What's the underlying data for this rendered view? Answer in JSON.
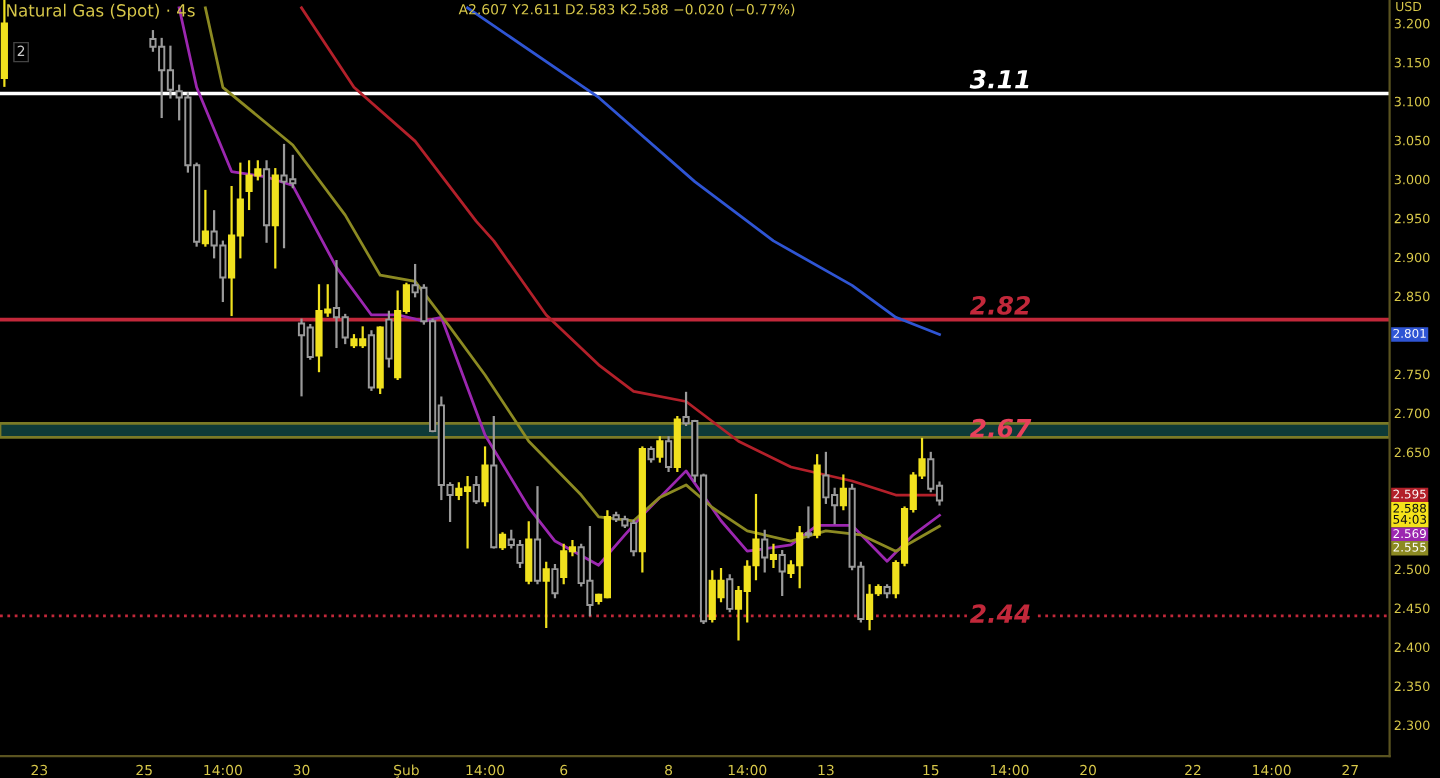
{
  "chart_data": {
    "type": "candlestick",
    "title": "Natural Gas (Spot) · 4s",
    "ylabel": "USD",
    "annotations": [
      "A2.607 Y2.611 D2.583 K2.588 −0.020 (−0.77%)",
      "2",
      "2.801",
      "2.595",
      "2.569",
      "2.555",
      "2.588\n54:03"
    ],
    "categories": [
      null,
      null,
      null,
      null,
      "23",
      null,
      null,
      null,
      null,
      null,
      null,
      null,
      null,
      null,
      null,
      null,
      "25",
      null,
      null,
      null,
      null,
      null,
      null,
      null,
      null,
      "14:00",
      null,
      null,
      null,
      null,
      null,
      null,
      null,
      null,
      "30",
      null,
      null,
      null,
      null,
      null,
      null,
      null,
      null,
      null,
      null,
      null,
      "Şub",
      null,
      null,
      null,
      null,
      null,
      null,
      null,
      null,
      "14:00",
      null,
      null,
      null,
      null,
      null,
      null,
      null,
      null,
      "6",
      null,
      null,
      null,
      null,
      null,
      null,
      null,
      null,
      null,
      null,
      null,
      "8",
      null,
      null,
      null,
      null,
      null,
      null,
      null,
      null,
      "14:00",
      null,
      null,
      null,
      null,
      null,
      null,
      null,
      null,
      "13",
      null,
      null,
      null,
      null,
      null,
      null,
      null,
      null,
      null,
      null,
      null,
      "15",
      null,
      null,
      null,
      null,
      null,
      null,
      null,
      null,
      "14:00",
      null,
      null,
      null,
      null,
      null,
      null,
      null,
      null,
      "20",
      null,
      null,
      null,
      null,
      null,
      null,
      null,
      null,
      null,
      null,
      null,
      "22",
      null,
      null,
      null,
      null,
      null,
      null,
      null,
      null,
      "14:00",
      null,
      null,
      null,
      null,
      null,
      null,
      null,
      null,
      "27",
      null,
      null,
      null,
      null
    ],
    "ohlc": [
      [
        3.13,
        3.23,
        3.12,
        3.2
      ],
      null,
      null,
      null,
      null,
      null,
      null,
      null,
      null,
      null,
      null,
      null,
      null,
      null,
      null,
      null,
      null,
      [
        3.18,
        3.19,
        3.165,
        3.17
      ],
      [
        3.17,
        3.18,
        3.08,
        3.14
      ],
      [
        3.14,
        3.17,
        3.105,
        3.115
      ],
      [
        3.113,
        3.12,
        3.077,
        3.105
      ],
      [
        3.105,
        3.11,
        3.01,
        3.018
      ],
      [
        3.018,
        3.02,
        2.915,
        2.92
      ],
      [
        2.918,
        2.985,
        2.915,
        2.933
      ],
      [
        2.933,
        2.959,
        2.9,
        2.915
      ],
      [
        2.915,
        2.92,
        2.844,
        2.874
      ],
      [
        2.874,
        2.99,
        2.826,
        2.928
      ],
      [
        2.928,
        3.02,
        2.9,
        2.974
      ],
      [
        2.985,
        3.023,
        2.962,
        3.005
      ],
      [
        3.005,
        3.023,
        3.0,
        3.013
      ],
      [
        3.013,
        3.023,
        2.92,
        2.941
      ],
      [
        2.941,
        3.013,
        2.887,
        3.005
      ],
      [
        3.005,
        3.044,
        2.913,
        2.997
      ],
      [
        3.0,
        3.03,
        2.99,
        2.995
      ],
      [
        2.815,
        2.82,
        2.723,
        2.8
      ],
      [
        2.81,
        2.813,
        2.77,
        2.772
      ],
      [
        2.774,
        2.864,
        2.754,
        2.831
      ],
      [
        2.829,
        2.864,
        2.825,
        2.833
      ],
      [
        2.835,
        2.895,
        2.785,
        2.823
      ],
      [
        2.823,
        2.826,
        2.79,
        2.797
      ],
      [
        2.787,
        2.8,
        2.785,
        2.795
      ],
      [
        2.787,
        2.81,
        2.785,
        2.795
      ],
      [
        2.8,
        2.805,
        2.73,
        2.733
      ],
      [
        2.733,
        2.81,
        2.726,
        2.81
      ],
      [
        2.82,
        2.83,
        2.76,
        2.77
      ],
      [
        2.746,
        2.856,
        2.744,
        2.831
      ],
      [
        2.831,
        2.866,
        2.829,
        2.864
      ],
      [
        2.864,
        2.89,
        2.85,
        2.855
      ],
      [
        2.861,
        2.864,
        2.815,
        2.818
      ],
      [
        2.818,
        2.82,
        2.677,
        2.677
      ],
      [
        2.71,
        2.72,
        2.59,
        2.608
      ],
      [
        2.608,
        2.61,
        2.562,
        2.595
      ],
      [
        2.595,
        2.61,
        2.59,
        2.603
      ],
      [
        2.6,
        2.618,
        2.528,
        2.605
      ],
      [
        2.608,
        2.618,
        2.585,
        2.587
      ],
      [
        2.587,
        2.656,
        2.582,
        2.633
      ],
      [
        2.633,
        2.695,
        2.528,
        2.528
      ],
      [
        2.528,
        2.546,
        2.526,
        2.544
      ],
      [
        2.538,
        2.549,
        2.528,
        2.531
      ],
      [
        2.531,
        2.536,
        2.503,
        2.508
      ],
      [
        2.485,
        2.56,
        2.482,
        2.538
      ],
      [
        2.538,
        2.605,
        2.482,
        2.485
      ],
      [
        2.485,
        2.508,
        2.426,
        2.5
      ],
      [
        2.5,
        2.505,
        2.464,
        2.469
      ],
      [
        2.49,
        2.531,
        2.482,
        2.523
      ],
      [
        2.523,
        2.536,
        2.518,
        2.528
      ],
      [
        2.528,
        2.531,
        2.479,
        2.482
      ],
      [
        2.485,
        2.554,
        2.441,
        2.454
      ],
      [
        2.459,
        2.467,
        2.456,
        2.467
      ],
      [
        2.464,
        2.574,
        2.464,
        2.567
      ],
      [
        2.569,
        2.572,
        2.562,
        2.564
      ],
      [
        2.564,
        2.567,
        2.554,
        2.556
      ],
      [
        2.559,
        2.562,
        2.518,
        2.523
      ],
      [
        2.523,
        2.656,
        2.497,
        2.654
      ],
      [
        2.654,
        2.656,
        2.638,
        2.641
      ],
      [
        2.644,
        2.669,
        2.638,
        2.664
      ],
      [
        2.664,
        2.669,
        2.626,
        2.631
      ],
      [
        2.631,
        2.695,
        2.626,
        2.692
      ],
      [
        2.695,
        2.726,
        2.685,
        2.687
      ],
      [
        2.69,
        2.69,
        2.613,
        2.62
      ],
      [
        2.62,
        2.621,
        2.431,
        2.433
      ],
      [
        2.436,
        2.497,
        2.433,
        2.485
      ],
      [
        2.464,
        2.5,
        2.459,
        2.485
      ],
      [
        2.487,
        2.492,
        2.446,
        2.449
      ],
      [
        2.449,
        2.477,
        2.41,
        2.472
      ],
      [
        2.472,
        2.51,
        2.433,
        2.503
      ],
      [
        2.505,
        2.595,
        2.487,
        2.538
      ],
      [
        2.538,
        2.549,
        2.497,
        2.515
      ],
      [
        2.513,
        2.531,
        2.503,
        2.518
      ],
      [
        2.518,
        2.523,
        2.467,
        2.497
      ],
      [
        2.495,
        2.51,
        2.49,
        2.505
      ],
      [
        2.505,
        2.554,
        2.477,
        2.546
      ],
      [
        2.546,
        2.579,
        2.541,
        2.544
      ],
      [
        2.544,
        2.646,
        2.541,
        2.633
      ],
      [
        2.62,
        2.649,
        2.585,
        2.592
      ],
      [
        2.595,
        2.603,
        2.559,
        2.582
      ],
      [
        2.582,
        2.62,
        2.577,
        2.603
      ],
      [
        2.603,
        2.608,
        2.5,
        2.503
      ],
      [
        2.503,
        2.508,
        2.433,
        2.436
      ],
      [
        2.436,
        2.479,
        2.423,
        2.467
      ],
      [
        2.469,
        2.479,
        2.467,
        2.477
      ],
      [
        2.477,
        2.479,
        2.464,
        2.469
      ],
      [
        2.469,
        2.51,
        2.464,
        2.508
      ],
      [
        2.508,
        2.579,
        2.505,
        2.577
      ],
      [
        2.577,
        2.623,
        2.574,
        2.62
      ],
      [
        2.62,
        2.667,
        2.617,
        2.641
      ],
      [
        2.641,
        2.649,
        2.6,
        2.603
      ],
      [
        2.607,
        2.611,
        2.583,
        2.588
      ],
      null,
      null,
      null,
      null,
      null,
      null,
      null,
      null,
      null,
      null,
      null,
      null,
      null,
      null,
      null,
      null,
      null,
      null,
      null,
      null,
      null,
      null,
      null,
      null,
      null,
      null,
      null,
      null,
      null,
      null,
      null,
      null,
      null,
      null,
      null,
      null,
      null,
      null,
      null,
      null,
      null,
      null,
      null,
      null,
      null,
      null,
      null,
      null,
      null,
      null,
      null
    ],
    "colors": [
      "#f0e11e",
      null,
      null,
      null,
      null,
      null,
      null,
      null,
      null,
      null,
      null,
      null,
      null,
      null,
      null,
      null,
      null,
      "#9a9a9a",
      "#9a9a9a",
      "#9a9a9a",
      "#9a9a9a",
      "#9a9a9a",
      "#9a9a9a",
      "#f0e11e",
      "#9a9a9a",
      "#9a9a9a",
      "#f0e11e",
      "#f0e11e",
      "#f0e11e",
      "#f0e11e",
      "#9a9a9a",
      "#f0e11e",
      "#9a9a9a",
      "#9a9a9a",
      "#9a9a9a",
      "#9a9a9a",
      "#f0e11e",
      "#f0e11e",
      "#9a9a9a",
      "#9a9a9a",
      "#f0e11e",
      "#f0e11e",
      "#9a9a9a",
      "#f0e11e",
      "#9a9a9a",
      "#f0e11e",
      "#f0e11e",
      "#9a9a9a",
      "#9a9a9a",
      "#9a9a9a",
      "#9a9a9a",
      "#9a9a9a",
      "#f0e11e",
      "#f0e11e",
      "#9a9a9a",
      "#f0e11e",
      "#9a9a9a",
      "#f0e11e",
      "#9a9a9a",
      "#9a9a9a",
      "#f0e11e",
      "#9a9a9a",
      "#f0e11e",
      "#9a9a9a",
      "#f0e11e",
      "#f0e11e",
      "#9a9a9a",
      "#9a9a9a",
      "#f0e11e",
      "#f0e11e",
      "#9a9a9a",
      "#9a9a9a",
      "#9a9a9a",
      "#f0e11e",
      "#9a9a9a",
      "#f0e11e",
      "#9a9a9a",
      "#f0e11e",
      "#9a9a9a",
      "#9a9a9a",
      "#9a9a9a",
      "#f0e11e",
      "#f0e11e",
      "#9a9a9a",
      "#f0e11e",
      "#f0e11e",
      "#f0e11e",
      "#9a9a9a",
      "#f0e11e",
      "#9a9a9a",
      "#f0e11e",
      "#f0e11e",
      "#9a9a9a",
      "#f0e11e",
      "#9a9a9a",
      "#9a9a9a",
      "#f0e11e",
      "#9a9a9a",
      "#9a9a9a",
      "#f0e11e",
      "#f0e11e",
      "#9a9a9a",
      "#f0e11e",
      "#f0e11e",
      "#f0e11e",
      "#f0e11e",
      "#9a9a9a",
      "#9a9a9a",
      null,
      null,
      null,
      null,
      null,
      null,
      null,
      null,
      null,
      null,
      null,
      null,
      null,
      null,
      null,
      null,
      null,
      null,
      null,
      null,
      null,
      null,
      null,
      null,
      null,
      null,
      null,
      null,
      null,
      null,
      null,
      null,
      null,
      null,
      null,
      null,
      null,
      null,
      null,
      null,
      null,
      null,
      null,
      null,
      null,
      null,
      null,
      null,
      null,
      null,
      null
    ],
    "series": [
      {
        "type": "line",
        "color": "#2f55d4",
        "values": [
          null,
          null,
          null,
          null,
          null,
          null,
          null,
          null,
          null,
          null,
          null,
          null,
          null,
          null,
          null,
          null,
          null,
          null,
          null,
          null,
          null,
          null,
          null,
          null,
          null,
          null,
          null,
          null,
          null,
          null,
          null,
          null,
          null,
          null,
          null,
          null,
          null,
          null,
          null,
          null,
          null,
          null,
          null,
          null,
          null,
          null,
          null,
          null,
          null,
          null,
          null,
          null,
          null,
          3.22,
          null,
          null,
          null,
          null,
          null,
          null,
          null,
          null,
          null,
          null,
          null,
          null,
          null,
          null,
          3.105,
          null,
          null,
          null,
          null,
          null,
          null,
          null,
          null,
          null,
          null,
          2.997,
          null,
          null,
          null,
          null,
          null,
          null,
          null,
          null,
          2.921,
          null,
          null,
          null,
          null,
          null,
          null,
          null,
          null,
          2.864,
          null,
          null,
          null,
          null,
          2.823,
          null,
          null,
          null,
          null,
          2.801,
          null,
          null,
          null,
          null,
          null,
          null,
          null,
          null,
          null,
          null,
          null,
          null,
          null,
          null,
          null,
          null,
          null,
          null,
          null,
          null,
          null,
          null,
          null,
          null,
          null,
          null,
          null,
          null,
          null,
          null,
          null,
          null,
          null,
          null,
          null,
          null,
          null,
          null,
          null,
          null,
          null,
          null,
          null,
          null,
          null,
          null,
          null,
          null,
          null,
          null,
          null
        ]
      },
      {
        "type": "line",
        "color": "#b3202a",
        "values": [
          null,
          null,
          null,
          null,
          null,
          null,
          null,
          null,
          null,
          null,
          null,
          null,
          null,
          null,
          null,
          null,
          null,
          null,
          null,
          null,
          null,
          null,
          null,
          null,
          null,
          null,
          null,
          null,
          null,
          null,
          null,
          null,
          null,
          null,
          3.22,
          null,
          null,
          null,
          null,
          null,
          3.118,
          null,
          null,
          null,
          null,
          null,
          null,
          3.049,
          null,
          null,
          null,
          null,
          null,
          null,
          2.946,
          null,
          2.921,
          null,
          null,
          null,
          null,
          null,
          2.826,
          null,
          null,
          null,
          null,
          null,
          2.762,
          null,
          null,
          null,
          2.728,
          null,
          null,
          null,
          null,
          null,
          2.715,
          null,
          null,
          null,
          null,
          null,
          2.664,
          null,
          null,
          null,
          null,
          null,
          2.631,
          null,
          null,
          null,
          null,
          null,
          null,
          2.613,
          null,
          null,
          null,
          null,
          2.595,
          null,
          null,
          null,
          null,
          2.595,
          null,
          null,
          null,
          null,
          null,
          null,
          null,
          null,
          null,
          null,
          null,
          null,
          null,
          null,
          null,
          null,
          null,
          null,
          null,
          null,
          null,
          null,
          null,
          null,
          null,
          null,
          null,
          null,
          null,
          null,
          null,
          null,
          null,
          null,
          null,
          null,
          null,
          null,
          null,
          null,
          null,
          null,
          null,
          null,
          null,
          null,
          null,
          null,
          null,
          null,
          null
        ]
      },
      {
        "type": "line",
        "color": "#9c27b0",
        "values": [
          null,
          null,
          null,
          null,
          null,
          null,
          null,
          null,
          null,
          null,
          null,
          null,
          null,
          null,
          null,
          null,
          null,
          null,
          null,
          null,
          3.22,
          null,
          3.118,
          null,
          null,
          null,
          3.01,
          null,
          null,
          null,
          3.003,
          null,
          null,
          2.992,
          null,
          null,
          null,
          null,
          2.887,
          null,
          null,
          null,
          2.826,
          null,
          null,
          2.826,
          null,
          null,
          2.818,
          null,
          2.823,
          null,
          null,
          null,
          null,
          2.672,
          null,
          null,
          null,
          null,
          2.579,
          null,
          null,
          2.536,
          null,
          null,
          null,
          null,
          2.505,
          null,
          null,
          2.544,
          null,
          2.569,
          null,
          null,
          null,
          null,
          2.626,
          null,
          null,
          null,
          2.562,
          null,
          null,
          2.523,
          null,
          null,
          null,
          null,
          2.531,
          null,
          null,
          2.556,
          null,
          null,
          null,
          2.556,
          null,
          null,
          null,
          2.51,
          null,
          null,
          2.544,
          null,
          null,
          2.569,
          null,
          null,
          null,
          null,
          null,
          null,
          null,
          null,
          null,
          null,
          null,
          null,
          null,
          null,
          null,
          null,
          null,
          null,
          null,
          null,
          null,
          null,
          null,
          null,
          null,
          null,
          null,
          null,
          null,
          null,
          null,
          null,
          null,
          null,
          null,
          null,
          null,
          null,
          null,
          null,
          null,
          null,
          null,
          null,
          null,
          null,
          null,
          null,
          null,
          null,
          null
        ]
      },
      {
        "type": "line",
        "color": "#8c8a22",
        "values": [
          null,
          null,
          null,
          null,
          null,
          null,
          null,
          null,
          null,
          null,
          null,
          null,
          null,
          null,
          null,
          null,
          null,
          null,
          null,
          null,
          null,
          null,
          null,
          3.22,
          null,
          3.118,
          null,
          null,
          null,
          null,
          null,
          null,
          null,
          3.044,
          null,
          null,
          null,
          null,
          null,
          2.954,
          null,
          null,
          null,
          2.877,
          null,
          null,
          null,
          2.869,
          null,
          null,
          null,
          2.81,
          null,
          null,
          null,
          2.749,
          null,
          null,
          null,
          null,
          2.664,
          null,
          null,
          null,
          null,
          null,
          2.595,
          null,
          2.567,
          null,
          null,
          null,
          2.562,
          null,
          null,
          2.592,
          null,
          null,
          2.608,
          null,
          null,
          2.579,
          null,
          null,
          null,
          2.549,
          null,
          null,
          null,
          null,
          2.536,
          null,
          null,
          null,
          2.549,
          null,
          null,
          null,
          2.544,
          null,
          null,
          null,
          2.523,
          null,
          null,
          null,
          null,
          2.555,
          null,
          null,
          null,
          null,
          null,
          null,
          null,
          null,
          null,
          null,
          null,
          null,
          null,
          null,
          null,
          null,
          null,
          null,
          null,
          null,
          null,
          null,
          null,
          null,
          null,
          null,
          null,
          null,
          null,
          null,
          null,
          null,
          null,
          null,
          null,
          null,
          null,
          null,
          null,
          null,
          null,
          null,
          null,
          null,
          null,
          null,
          null,
          null,
          null,
          null,
          null
        ]
      }
    ],
    "ref_lines": [
      {
        "axis": "y",
        "value": 3.11,
        "label": "3.11",
        "color": "#ffffff",
        "line_style": "solid"
      },
      {
        "axis": "y",
        "value": 2.82,
        "label": "2.82",
        "color": "#c2283a",
        "line_style": "solid"
      },
      {
        "axis": "y",
        "value": 2.44,
        "label": "2.44",
        "color": "#c2283a",
        "line_style": "dotted"
      }
    ],
    "bands": [
      {
        "axis": "y",
        "from": 2.669,
        "to": 2.687,
        "label": "2.67",
        "color": "#0e3a38"
      }
    ],
    "ylim": [
      2.26,
      3.23
    ],
    "yticks": [
      {
        "value": 2.3,
        "label": "2.300"
      },
      {
        "value": 2.35,
        "label": "2.350"
      },
      {
        "value": 2.4,
        "label": "2.400"
      },
      {
        "value": 2.45,
        "label": "2.450"
      },
      {
        "value": 2.5,
        "label": "2.500"
      },
      {
        "value": 2.65,
        "label": "2.650"
      },
      {
        "value": 2.7,
        "label": "2.700"
      },
      {
        "value": 2.75,
        "label": "2.750"
      },
      {
        "value": 2.85,
        "label": "2.850"
      },
      {
        "value": 2.9,
        "label": "2.900"
      },
      {
        "value": 2.95,
        "label": "2.950"
      },
      {
        "value": 3.0,
        "label": "3.000"
      },
      {
        "value": 3.05,
        "label": "3.050"
      },
      {
        "value": 3.1,
        "label": "3.100"
      },
      {
        "value": 3.15,
        "label": "3.150"
      },
      {
        "value": 3.2,
        "label": "3.200"
      }
    ]
  }
}
